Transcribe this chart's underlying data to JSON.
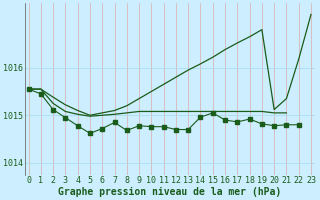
{
  "xlabel": "Graphe pression niveau de la mer (hPa)",
  "bg_color": "#cceeff",
  "grid_color_v": "#ddaaaa",
  "grid_color_h": "#aaddee",
  "line_color": "#1a5c1a",
  "x_ticks": [
    0,
    1,
    2,
    3,
    4,
    5,
    6,
    7,
    8,
    9,
    10,
    11,
    12,
    13,
    14,
    15,
    16,
    17,
    18,
    19,
    20,
    21,
    22,
    23
  ],
  "y_ticks": [
    1014,
    1015,
    1016
  ],
  "ylim": [
    1013.75,
    1017.35
  ],
  "xlim": [
    -0.3,
    23.3
  ],
  "series1": [
    1015.55,
    1015.55,
    1015.38,
    1015.22,
    1015.1,
    1015.0,
    1015.05,
    1015.1,
    1015.2,
    1015.35,
    1015.5,
    1015.65,
    1015.8,
    1015.95,
    1016.08,
    1016.22,
    1016.38,
    1016.52,
    1016.65,
    1016.8,
    1015.12,
    1015.35,
    1016.18,
    1017.12
  ],
  "series2": [
    1015.55,
    1015.55,
    1015.25,
    1015.08,
    1015.02,
    1014.98,
    1015.0,
    1015.02,
    1015.05,
    1015.08,
    1015.08,
    1015.08,
    1015.08,
    1015.08,
    1015.08,
    1015.08,
    1015.08,
    1015.08,
    1015.08,
    1015.08,
    1015.05,
    1015.05,
    null,
    null
  ],
  "series3": [
    1015.55,
    1015.45,
    1015.12,
    1014.95,
    1014.78,
    1014.62,
    1014.72,
    1014.85,
    1014.68,
    1014.78,
    1014.76,
    1014.76,
    1014.7,
    1014.7,
    1014.96,
    1015.05,
    1014.9,
    1014.86,
    1014.92,
    1014.82,
    1014.78,
    1014.8,
    1014.8,
    null
  ],
  "series4": [
    null,
    null,
    null,
    null,
    null,
    null,
    null,
    null,
    null,
    null,
    null,
    null,
    null,
    null,
    null,
    null,
    null,
    null,
    null,
    null,
    1015.08,
    null,
    1016.18,
    1017.12
  ],
  "tick_fontsize": 6.0,
  "label_fontsize": 7.0
}
